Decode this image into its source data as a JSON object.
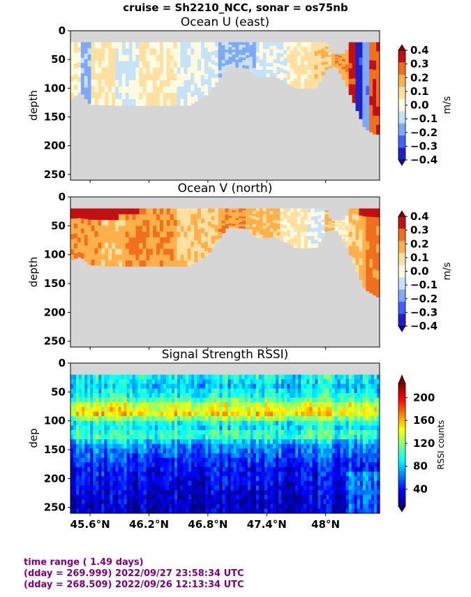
{
  "figure": {
    "suptitle": "cruise = Sh2210_NCC,  sonar = os75nb",
    "footer": {
      "line1": "time range ( 1.49 days)",
      "line2": "(dday = 269.999) 2022/09/27 23:58:34 UTC",
      "line3": "(dday = 268.509) 2022/09/26 12:13:34 UTC"
    },
    "colors": {
      "footer_text": "#800080",
      "no_data": "#d6d6d6",
      "frame": "#000000"
    }
  },
  "chart_data": [
    {
      "type": "heatmap",
      "title": "Ocean U (east)",
      "ylabel": "depth",
      "xlabel": "",
      "y_axis": "inverted",
      "ylim": [
        260,
        0
      ],
      "xlim": [
        45.4,
        48.55
      ],
      "yticks": [
        0,
        50,
        100,
        150,
        200,
        250
      ],
      "xticks": [
        45.6,
        46.2,
        46.8,
        47.4,
        48.0
      ],
      "xtick_labels": [
        "",
        "",
        "",
        "",
        ""
      ],
      "colorbar": {
        "label": "m/s",
        "ticks": [
          0.4,
          0.3,
          0.2,
          0.1,
          0.0,
          -0.1,
          -0.2,
          -0.3,
          -0.4
        ],
        "tick_labels": [
          "0.4",
          "0.3",
          "0.2",
          "0.1",
          "0.0",
          "−0.1",
          "−0.2",
          "−0.3",
          "−0.4"
        ],
        "colormap": "bwr-contour",
        "levels": [
          "#2020c8",
          "#4060ff",
          "#7fa8f8",
          "#c6e2f8",
          "#fffbe0",
          "#ffe0a0",
          "#ffb04a",
          "#f07020",
          "#c01010"
        ],
        "extend": "both"
      },
      "bottom_depth": [
        [
          45.4,
          120
        ],
        [
          45.5,
          105
        ],
        [
          45.6,
          128
        ],
        [
          45.9,
          130
        ],
        [
          46.1,
          130
        ],
        [
          46.6,
          130
        ],
        [
          46.8,
          110
        ],
        [
          47.0,
          62
        ],
        [
          47.2,
          65
        ],
        [
          47.3,
          80
        ],
        [
          47.5,
          80
        ],
        [
          47.7,
          100
        ],
        [
          47.9,
          100
        ],
        [
          48.0,
          68
        ],
        [
          48.1,
          60
        ],
        [
          48.2,
          90
        ],
        [
          48.3,
          130
        ],
        [
          48.4,
          170
        ],
        [
          48.5,
          180
        ],
        [
          48.55,
          180
        ]
      ],
      "top_depth": [
        [
          45.4,
          20
        ],
        [
          48.0,
          20
        ],
        [
          48.05,
          40
        ],
        [
          48.2,
          40
        ],
        [
          48.25,
          20
        ],
        [
          48.55,
          20
        ]
      ],
      "segments": [
        {
          "x0": 45.4,
          "x1": 45.5,
          "v": 0.05
        },
        {
          "x0": 45.5,
          "x1": 45.62,
          "v": -0.15
        },
        {
          "x0": 45.62,
          "x1": 45.85,
          "v": 0.05
        },
        {
          "x0": 45.85,
          "x1": 46.1,
          "v": -0.05
        },
        {
          "x0": 46.1,
          "x1": 46.5,
          "v": 0.05
        },
        {
          "x0": 46.5,
          "x1": 46.9,
          "v": -0.05
        },
        {
          "x0": 46.9,
          "x1": 47.3,
          "v": -0.15
        },
        {
          "x0": 47.3,
          "x1": 47.6,
          "v": -0.05
        },
        {
          "x0": 47.6,
          "x1": 47.85,
          "v": 0.05
        },
        {
          "x0": 47.85,
          "x1": 48.05,
          "v": 0.12
        },
        {
          "x0": 48.05,
          "x1": 48.25,
          "v": 0.2
        },
        {
          "x0": 48.25,
          "x1": 48.3,
          "v": 0.35
        },
        {
          "x0": 48.3,
          "x1": 48.38,
          "v": -0.35
        },
        {
          "x0": 48.38,
          "x1": 48.45,
          "v": -0.2
        },
        {
          "x0": 48.45,
          "x1": 48.55,
          "v": 0.3
        }
      ]
    },
    {
      "type": "heatmap",
      "title": "Ocean V (north)",
      "ylabel": "depth",
      "xlabel": "",
      "y_axis": "inverted",
      "ylim": [
        260,
        0
      ],
      "xlim": [
        45.4,
        48.55
      ],
      "yticks": [
        0,
        50,
        100,
        150,
        200,
        250
      ],
      "xticks": [
        45.6,
        46.2,
        46.8,
        47.4,
        48.0
      ],
      "xtick_labels": [
        "",
        "",
        "",
        "",
        ""
      ],
      "colorbar": {
        "label": "m/s",
        "ticks": [
          0.4,
          0.3,
          0.2,
          0.1,
          0.0,
          -0.1,
          -0.2,
          -0.3,
          -0.4
        ],
        "tick_labels": [
          "0.4",
          "0.3",
          "0.2",
          "0.1",
          "0.0",
          "−0.1",
          "−0.2",
          "−0.3",
          "−0.4"
        ],
        "colormap": "bwr-contour",
        "levels": [
          "#2020c8",
          "#4060ff",
          "#7fa8f8",
          "#c6e2f8",
          "#fffbe0",
          "#ffe0a0",
          "#ffb04a",
          "#f07020",
          "#c01010"
        ],
        "extend": "both"
      },
      "bottom_depth": [
        [
          45.4,
          110
        ],
        [
          45.5,
          103
        ],
        [
          45.6,
          118
        ],
        [
          45.9,
          120
        ],
        [
          46.1,
          120
        ],
        [
          46.6,
          120
        ],
        [
          46.8,
          100
        ],
        [
          47.0,
          52
        ],
        [
          47.2,
          55
        ],
        [
          47.3,
          70
        ],
        [
          47.5,
          70
        ],
        [
          47.7,
          88
        ],
        [
          47.9,
          88
        ],
        [
          48.0,
          60
        ],
        [
          48.1,
          55
        ],
        [
          48.2,
          80
        ],
        [
          48.3,
          120
        ],
        [
          48.4,
          160
        ],
        [
          48.5,
          170
        ],
        [
          48.55,
          175
        ]
      ],
      "top_depth": [
        [
          45.4,
          20
        ],
        [
          48.0,
          20
        ],
        [
          48.05,
          40
        ],
        [
          48.2,
          40
        ],
        [
          48.25,
          20
        ],
        [
          48.55,
          20
        ]
      ],
      "segments": [
        {
          "x0": 45.4,
          "x1": 45.7,
          "v": 0.2
        },
        {
          "x0": 45.7,
          "x1": 45.95,
          "v": 0.15
        },
        {
          "x0": 45.95,
          "x1": 46.2,
          "v": 0.22
        },
        {
          "x0": 46.2,
          "x1": 46.5,
          "v": 0.2
        },
        {
          "x0": 46.5,
          "x1": 46.9,
          "v": 0.12
        },
        {
          "x0": 46.9,
          "x1": 47.2,
          "v": 0.2
        },
        {
          "x0": 47.2,
          "x1": 47.55,
          "v": 0.15
        },
        {
          "x0": 47.55,
          "x1": 47.8,
          "v": 0.05
        },
        {
          "x0": 47.8,
          "x1": 48.0,
          "v": -0.05
        },
        {
          "x0": 48.0,
          "x1": 48.1,
          "v": 0.15
        },
        {
          "x0": 48.1,
          "x1": 48.25,
          "v": 0.05
        },
        {
          "x0": 48.25,
          "x1": 48.4,
          "v": 0.15
        },
        {
          "x0": 48.4,
          "x1": 48.55,
          "v": 0.25
        }
      ],
      "surface_band": {
        "v": 0.35,
        "depth": [
          20,
          30
        ]
      }
    },
    {
      "type": "heatmap",
      "title": "Signal Strength RSSI)",
      "ylabel": "dep",
      "xlabel": "",
      "y_axis": "inverted",
      "ylim": [
        260,
        0
      ],
      "xlim": [
        45.4,
        48.55
      ],
      "yticks": [
        0,
        50,
        100,
        150,
        200,
        250
      ],
      "xticks": [
        45.6,
        46.2,
        46.8,
        47.4,
        48.0
      ],
      "xtick_labels": [
        "45.6°N",
        "46.2°N",
        "46.8°N",
        "47.4°N",
        "48°N"
      ],
      "colorbar": {
        "label": "RSSI counts",
        "ticks": [
          200,
          160,
          120,
          80,
          40
        ],
        "tick_labels": [
          "200",
          "160",
          "120",
          "80",
          "40"
        ],
        "range": [
          10,
          225
        ],
        "colormap": "jet",
        "extend": "both"
      },
      "depth_bins": [
        20,
        260
      ],
      "bin_size_m": 8,
      "profile_by_depth": [
        [
          20,
          95
        ],
        [
          40,
          80
        ],
        [
          60,
          100
        ],
        [
          75,
          140
        ],
        [
          90,
          150
        ],
        [
          100,
          100
        ],
        [
          110,
          85
        ],
        [
          125,
          110
        ],
        [
          140,
          70
        ],
        [
          160,
          55
        ],
        [
          180,
          40
        ],
        [
          200,
          35
        ],
        [
          220,
          30
        ],
        [
          240,
          25
        ],
        [
          260,
          25
        ]
      ]
    }
  ]
}
